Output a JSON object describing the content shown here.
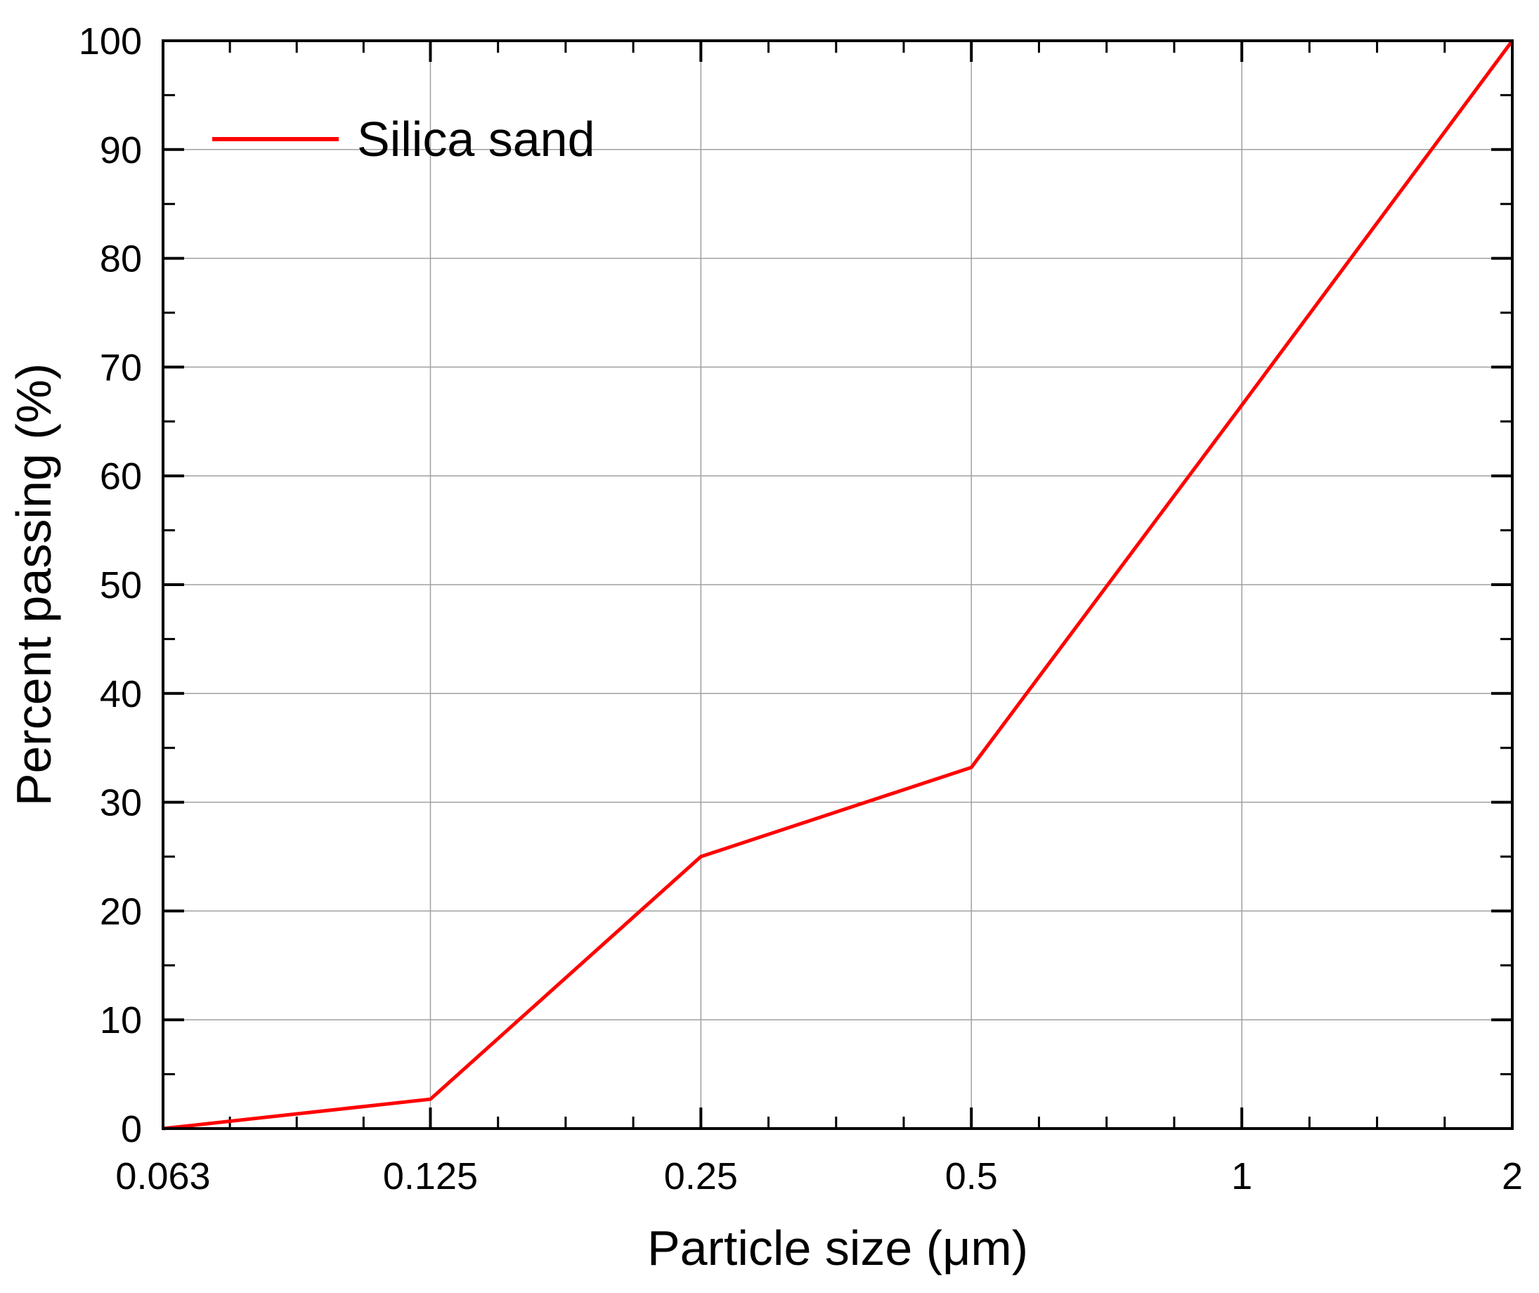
{
  "chart_data": {
    "type": "line",
    "xlabel": "Particle size (μm)",
    "ylabel": "Percent passing (%)",
    "x_scale": "log",
    "xlim": [
      0.063,
      2
    ],
    "ylim": [
      0,
      100
    ],
    "x_ticks": [
      {
        "value": 0.063,
        "label": "0.063"
      },
      {
        "value": 0.125,
        "label": "0.125"
      },
      {
        "value": 0.25,
        "label": "0.25"
      },
      {
        "value": 0.5,
        "label": "0.5"
      },
      {
        "value": 1,
        "label": "1"
      },
      {
        "value": 2,
        "label": "2"
      }
    ],
    "y_ticks": [
      0,
      10,
      20,
      30,
      40,
      50,
      60,
      70,
      80,
      90,
      100
    ],
    "grid": true,
    "legend": {
      "position": "top-left"
    },
    "series": [
      {
        "name": "Silica sand",
        "color": "#ff0000",
        "x": [
          0.063,
          0.125,
          0.25,
          0.5,
          1,
          2
        ],
        "y": [
          0,
          2.7,
          25,
          33.2,
          66.5,
          100
        ]
      }
    ]
  }
}
